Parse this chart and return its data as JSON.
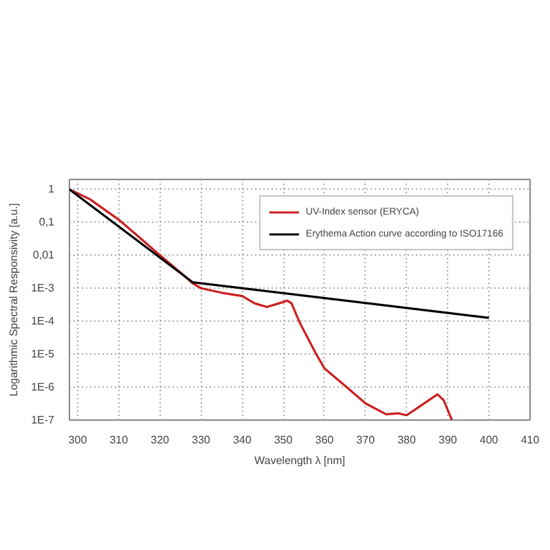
{
  "chart_data": {
    "type": "line",
    "xlabel": "Wavelength λ [nm]",
    "ylabel": "Logarithmic Spectral Responsivity [a.u.]",
    "log": "y",
    "grid": true,
    "legend": "top right",
    "marker": "none",
    "line_style": "solid",
    "xlim": [
      298,
      410
    ],
    "xticks": [
      300,
      310,
      320,
      330,
      340,
      350,
      360,
      370,
      380,
      390,
      400,
      410
    ],
    "ylim": [
      1e-07,
      2
    ],
    "yticks": [
      {
        "value": 1,
        "label": "1"
      },
      {
        "value": 0.1,
        "label": "0,1"
      },
      {
        "value": 0.01,
        "label": "0,01"
      },
      {
        "value": 0.001,
        "label": "1E-3"
      },
      {
        "value": 0.0001,
        "label": "1E-4"
      },
      {
        "value": 1e-05,
        "label": "1E-5"
      },
      {
        "value": 1e-06,
        "label": "1E-6"
      },
      {
        "value": 1e-07,
        "label": "1E-7"
      }
    ],
    "series": [
      {
        "name": "UV-Index sensor (ERYCA)",
        "color": "#cc1f1f",
        "x": [
          298,
          303,
          310,
          315,
          320,
          325,
          328,
          330,
          335,
          340,
          343,
          346,
          349,
          351,
          352,
          354,
          356,
          358,
          360,
          365,
          370,
          375,
          378,
          380,
          383,
          386,
          387.5,
          389,
          391
        ],
        "values": [
          1,
          0.5,
          0.12,
          0.035,
          0.01,
          0.003,
          0.0014,
          0.001,
          0.00073,
          0.00058,
          0.00035,
          0.00027,
          0.00035,
          0.00042,
          0.00035,
          9e-05,
          3e-05,
          1e-05,
          3.7e-06,
          1.1e-06,
          3.2e-07,
          1.5e-07,
          1.6e-07,
          1.4e-07,
          2.5e-07,
          4.5e-07,
          6e-07,
          4e-07,
          1e-07
        ]
      },
      {
        "name": "Erythema Action curve according to ISO17166",
        "color": "#000000",
        "x": [
          298,
          328,
          400
        ],
        "values": [
          1,
          0.00151,
          0.000126
        ]
      }
    ]
  }
}
